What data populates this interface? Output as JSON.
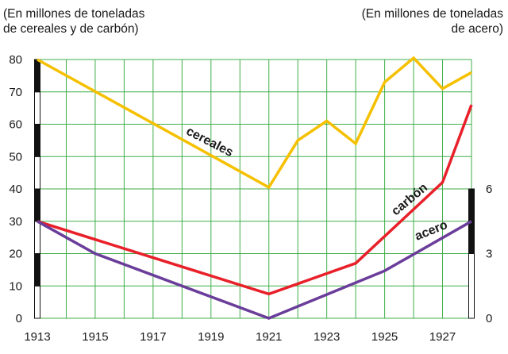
{
  "chart_data": {
    "type": "line",
    "left_axis_title": [
      "(En millones de toneladas",
      "de cereales y de carbón)"
    ],
    "right_axis_title": [
      "(En millones de toneladas",
      "de acero)"
    ],
    "x_ticks": [
      "1913",
      "1915",
      "1917",
      "1919",
      "1921",
      "1923",
      "1925",
      "1927"
    ],
    "left_ticks": [
      0,
      10,
      20,
      30,
      40,
      50,
      60,
      70,
      80
    ],
    "right_ticks": [
      0,
      3,
      6
    ],
    "xlim": [
      1913,
      1928
    ],
    "ylim_left": [
      0,
      80
    ],
    "ylim_right": [
      0,
      12
    ],
    "grid": true,
    "series": [
      {
        "name": "cereales",
        "axis": "left",
        "color": "#f5c000",
        "x": [
          1913,
          1921,
          1922,
          1923,
          1924,
          1925,
          1926,
          1927,
          1928
        ],
        "values": [
          80,
          40.5,
          55,
          61,
          54,
          73,
          80.5,
          71,
          76
        ]
      },
      {
        "name": "carbón",
        "axis": "left",
        "color": "#e8202a",
        "x": [
          1913,
          1921,
          1924,
          1927,
          1928
        ],
        "values": [
          30,
          7.5,
          17,
          42,
          66
        ]
      },
      {
        "name": "acero",
        "axis": "right",
        "color": "#6a3d9a",
        "x": [
          1913,
          1915,
          1921,
          1925,
          1928
        ],
        "values": [
          4.5,
          3,
          0,
          2.2,
          4.5
        ]
      }
    ]
  }
}
